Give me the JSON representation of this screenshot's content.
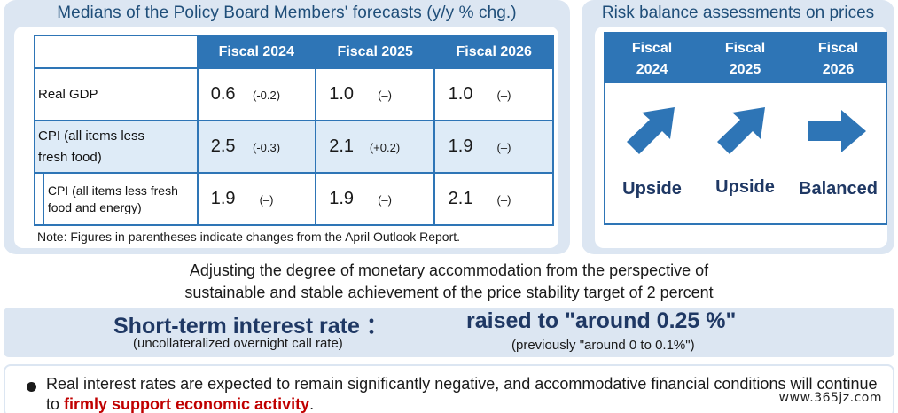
{
  "forecasts": {
    "title": "Medians of the Policy Board Members' forecasts (y/y % chg.)",
    "columns": [
      "Fiscal 2024",
      "Fiscal 2025",
      "Fiscal 2026"
    ],
    "rows": [
      {
        "label": "Real GDP",
        "values": [
          {
            "v": "0.6",
            "c": "(-0.2)"
          },
          {
            "v": "1.0",
            "c": "(–)"
          },
          {
            "v": "1.0",
            "c": "(–)"
          }
        ]
      },
      {
        "label": "CPI (all items less fresh food)",
        "values": [
          {
            "v": "2.5",
            "c": "(-0.3)"
          },
          {
            "v": "2.1",
            "c": "(+0.2)"
          },
          {
            "v": "1.9",
            "c": "(–)"
          }
        ]
      },
      {
        "label": "CPI (all items less fresh food and energy)",
        "values": [
          {
            "v": "1.9",
            "c": "(–)"
          },
          {
            "v": "1.9",
            "c": "(–)"
          },
          {
            "v": "2.1",
            "c": "(–)"
          }
        ]
      }
    ],
    "note": "Note: Figures in parentheses indicate changes from the April Outlook Report."
  },
  "risk": {
    "title": "Risk balance assessments on prices",
    "columns": [
      {
        "line1": "Fiscal",
        "line2": "2024",
        "assessment": "Upside",
        "arrow": "arrow-up-right-icon"
      },
      {
        "line1": "Fiscal",
        "line2": "2025",
        "assessment": "Upside",
        "arrow": "arrow-up-right-icon"
      },
      {
        "line1": "Fiscal",
        "line2": "2026",
        "assessment": "Balanced",
        "arrow": "arrow-right-icon"
      }
    ]
  },
  "policy": {
    "line1": "Adjusting the degree of monetary accommodation from the perspective of",
    "line2": "sustainable and stable achievement of the price stability target of 2 percent"
  },
  "rate": {
    "title": "Short-term interest rate ：",
    "subtitle": "(uncollateralized overnight call rate)",
    "value": "raised to \"around 0.25 %\"",
    "previous": "(previously \"around 0 to 0.1%\")"
  },
  "bullet": {
    "text_before": "Real interest rates are expected to remain significantly negative, and accommodative financial conditions will continue to ",
    "highlight": "firmly support economic activity",
    "text_after": "."
  },
  "watermark": "www.365jz.com",
  "colors": {
    "accent": "#2e75b6",
    "panel": "#dce6f2",
    "highlight": "#c00000",
    "navy": "#1f3864"
  }
}
